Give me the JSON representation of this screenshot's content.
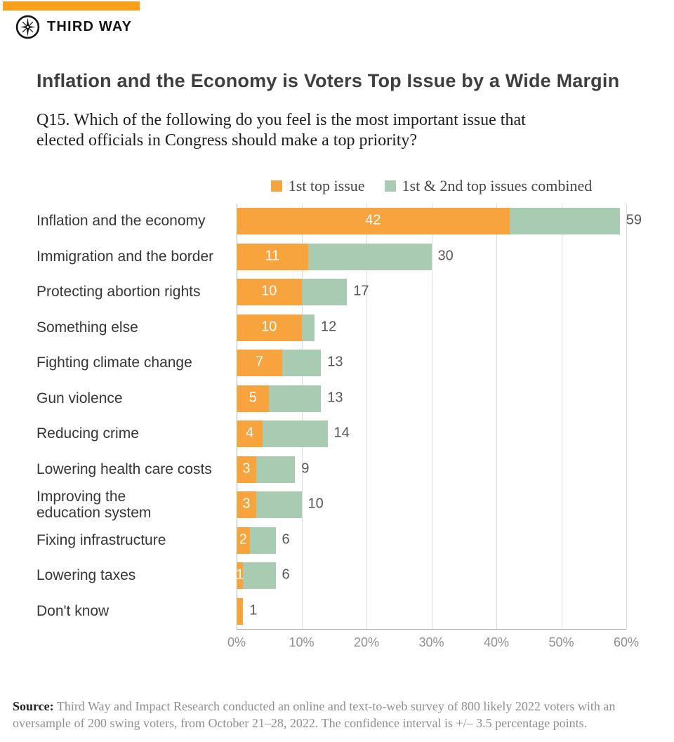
{
  "brand": {
    "name": "THIRD WAY",
    "accent_color": "#F9A01B"
  },
  "title": "Inflation and the Economy is Voters Top Issue by a Wide Margin",
  "question": "Q15. Which of the following do you feel is the most important issue that\nelected officials in Congress should make a top priority?",
  "chart_data": {
    "type": "bar",
    "orientation": "horizontal",
    "note": "first-series bar drawn from the same baseline on top of the combined-series bar",
    "title": "Inflation and the Economy is Voters Top Issue by a Wide Margin",
    "categories": [
      "Inflation and the economy",
      "Immigration and the border",
      "Protecting abortion rights",
      "Something else",
      "Fighting climate change",
      "Gun violence",
      "Reducing crime",
      "Lowering health care costs",
      "Improving the\neducation system",
      "Fixing infrastructure",
      "Lowering taxes",
      "Don't know"
    ],
    "series": [
      {
        "name": "1st top issue",
        "color": "#F7A43F",
        "values": [
          42,
          11,
          10,
          10,
          7,
          5,
          4,
          3,
          3,
          2,
          1,
          1
        ]
      },
      {
        "name": "1st & 2nd top issues combined",
        "color": "#A9CBB2",
        "values": [
          59,
          30,
          17,
          12,
          13,
          13,
          14,
          9,
          10,
          6,
          6,
          1
        ]
      }
    ],
    "bar_value_labels": {
      "first": [
        "42",
        "11",
        "10",
        "10",
        "7",
        "5",
        "4",
        "3",
        "3",
        "2",
        "1",
        ""
      ],
      "combined": [
        "59",
        "30",
        "17",
        "12",
        "13",
        "13",
        "14",
        "9",
        "10",
        "6",
        "6",
        "1"
      ]
    },
    "x_ticks": [
      {
        "value": 0,
        "label": "0%"
      },
      {
        "value": 10,
        "label": "10%"
      },
      {
        "value": 20,
        "label": "20%"
      },
      {
        "value": 30,
        "label": "30%"
      },
      {
        "value": 40,
        "label": "40%"
      },
      {
        "value": 50,
        "label": "50%"
      },
      {
        "value": 60,
        "label": "60%"
      }
    ],
    "xlim": [
      0,
      60
    ],
    "grid": true,
    "legend_position": "top"
  },
  "source": {
    "label": "Source:",
    "text": " Third Way and Impact Research conducted an online and text-to-web survey of 800 likely 2022 voters with an oversample of 200 swing voters, from October 21–28, 2022. The confidence interval is +/– 3.5 percentage points."
  }
}
